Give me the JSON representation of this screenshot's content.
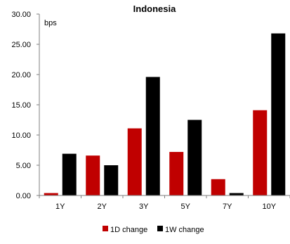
{
  "chart_data": {
    "type": "bar",
    "title": "Indonesia",
    "ylabel": "bps",
    "xlabel": "",
    "categories": [
      "1Y",
      "2Y",
      "3Y",
      "5Y",
      "7Y",
      "10Y"
    ],
    "series": [
      {
        "name": "1D change",
        "color": "#C00000",
        "values": [
          0.4,
          6.6,
          11.1,
          7.2,
          2.7,
          14.1
        ]
      },
      {
        "name": "1W change",
        "color": "#000000",
        "values": [
          6.9,
          5.0,
          19.6,
          12.5,
          0.4,
          26.8
        ]
      }
    ],
    "ylim": [
      0,
      30
    ],
    "yticks": [
      "0.00",
      "5.00",
      "10.00",
      "15.00",
      "20.00",
      "25.00",
      "30.00"
    ],
    "grid": false,
    "legend_position": "bottom"
  }
}
